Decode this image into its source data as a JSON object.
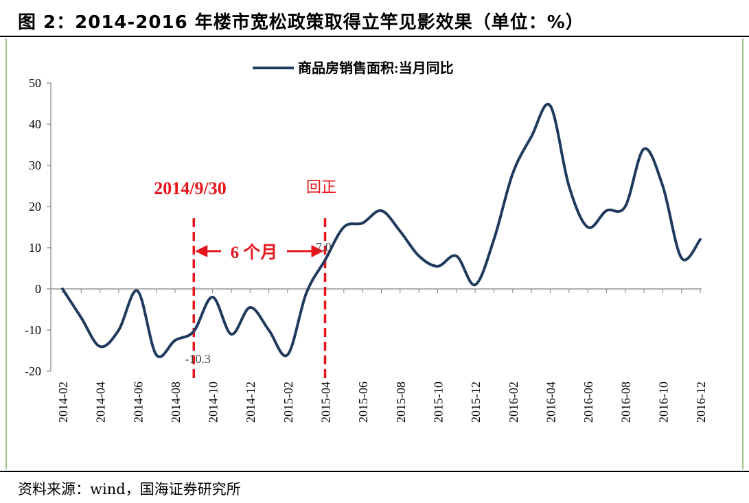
{
  "header": {
    "title": "图 2：2014-2016 年楼市宽松政策取得立竿见影效果（单位：%）"
  },
  "footer": {
    "source": "资料来源：wind，国海证券研究所"
  },
  "chart_data": {
    "type": "line",
    "title": "",
    "xlabel": "",
    "ylabel": "",
    "ylim": [
      -20,
      50
    ],
    "yticks": [
      "50",
      "40",
      "30",
      "20",
      "10",
      "0",
      "-10",
      "-20"
    ],
    "legend": {
      "position": "top-center",
      "entries": [
        "商品房销售面积:当月同比"
      ]
    },
    "grid": false,
    "x_tick_labels": [
      "2014-02",
      "2014-04",
      "2014-06",
      "2014-08",
      "2014-10",
      "2014-12",
      "2015-02",
      "2015-04",
      "2015-06",
      "2015-08",
      "2015-10",
      "2015-12",
      "2016-02",
      "2016-04",
      "2016-06",
      "2016-08",
      "2016-10",
      "2016-12"
    ],
    "x": [
      "2014-02",
      "2014-03",
      "2014-04",
      "2014-05",
      "2014-06",
      "2014-07",
      "2014-08",
      "2014-09",
      "2014-10",
      "2014-11",
      "2014-12",
      "2015-01",
      "2015-02",
      "2015-03",
      "2015-04",
      "2015-05",
      "2015-06",
      "2015-07",
      "2015-08",
      "2015-09",
      "2015-10",
      "2015-11",
      "2015-12",
      "2016-01",
      "2016-02",
      "2016-03",
      "2016-04",
      "2016-05",
      "2016-06",
      "2016-07",
      "2016-08",
      "2016-09",
      "2016-10",
      "2016-11",
      "2016-12"
    ],
    "series": [
      {
        "name": "商品房销售面积:当月同比",
        "color": "#1f3a5c",
        "values": [
          0,
          -7,
          -14,
          -10,
          -0.5,
          -16,
          -12.5,
          -10.3,
          -2,
          -11,
          -4.5,
          -10,
          -16,
          -1,
          7.0,
          15,
          16,
          19,
          14,
          8,
          5.5,
          8,
          1,
          12,
          28,
          37,
          44.5,
          25,
          15,
          19,
          20,
          34,
          25,
          7.5,
          12
        ]
      }
    ],
    "data_labels": [
      {
        "x": "2014-09",
        "text": "-10.3"
      },
      {
        "x": "2015-04",
        "text": "7.0"
      }
    ],
    "annotations": {
      "vlines": [
        {
          "x": "2014-09",
          "label": "2014/9/30",
          "color": "#e8141b"
        },
        {
          "x": "2015-04",
          "label": "回正",
          "color": "#e8141b"
        }
      ],
      "span_label": "6 个月",
      "color": "#e8141b"
    }
  }
}
